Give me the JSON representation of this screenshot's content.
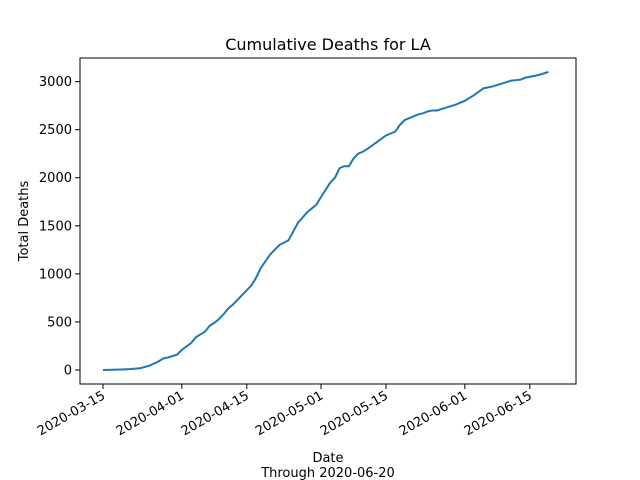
{
  "chart_data": {
    "type": "line",
    "title": "Cumulative Deaths for LA",
    "xlabel": "Date",
    "xlabel_sub": "Through 2020-06-20",
    "ylabel": "Total Deaths",
    "grid": false,
    "xlim": [
      "2020-03-15",
      "2020-06-20"
    ],
    "ylim": [
      0,
      3100
    ],
    "x_ticks": [
      "2020-03-15",
      "2020-04-01",
      "2020-04-15",
      "2020-05-01",
      "2020-05-15",
      "2020-06-01",
      "2020-06-15"
    ],
    "y_ticks": [
      0,
      500,
      1000,
      1500,
      2000,
      2500,
      3000
    ],
    "line_color": "#1f77b4",
    "series": [
      {
        "x": [
          "2020-03-15",
          "2020-03-17",
          "2020-03-19",
          "2020-03-21",
          "2020-03-23",
          "2020-03-25",
          "2020-03-27",
          "2020-03-28",
          "2020-03-29",
          "2020-03-31",
          "2020-04-01",
          "2020-04-03",
          "2020-04-04",
          "2020-04-05",
          "2020-04-06",
          "2020-04-07",
          "2020-04-08",
          "2020-04-09",
          "2020-04-10",
          "2020-04-11",
          "2020-04-12",
          "2020-04-13",
          "2020-04-14",
          "2020-04-15",
          "2020-04-16",
          "2020-04-17",
          "2020-04-18",
          "2020-04-20",
          "2020-04-22",
          "2020-04-24",
          "2020-04-26",
          "2020-04-28",
          "2020-04-30",
          "2020-05-01",
          "2020-05-03",
          "2020-05-04",
          "2020-05-05",
          "2020-05-06",
          "2020-05-07",
          "2020-05-08",
          "2020-05-09",
          "2020-05-10",
          "2020-05-11",
          "2020-05-13",
          "2020-05-15",
          "2020-05-17",
          "2020-05-18",
          "2020-05-19",
          "2020-05-20",
          "2020-05-22",
          "2020-05-23",
          "2020-05-24",
          "2020-05-25",
          "2020-05-26",
          "2020-05-28",
          "2020-05-30",
          "2020-06-01",
          "2020-06-03",
          "2020-06-05",
          "2020-06-07",
          "2020-06-09",
          "2020-06-11",
          "2020-06-13",
          "2020-06-14",
          "2020-06-16",
          "2020-06-17",
          "2020-06-19"
        ],
        "values": [
          0,
          2,
          5,
          10,
          18,
          45,
          90,
          120,
          130,
          160,
          210,
          280,
          340,
          370,
          400,
          460,
          490,
          530,
          580,
          640,
          680,
          730,
          780,
          830,
          880,
          960,
          1060,
          1200,
          1300,
          1350,
          1530,
          1640,
          1720,
          1800,
          1950,
          2000,
          2100,
          2120,
          2120,
          2200,
          2250,
          2270,
          2300,
          2370,
          2440,
          2480,
          2550,
          2600,
          2620,
          2660,
          2670,
          2690,
          2700,
          2700,
          2730,
          2760,
          2800,
          2860,
          2930,
          2950,
          2980,
          3010,
          3020,
          3040,
          3060,
          3070,
          3100
        ]
      }
    ]
  }
}
